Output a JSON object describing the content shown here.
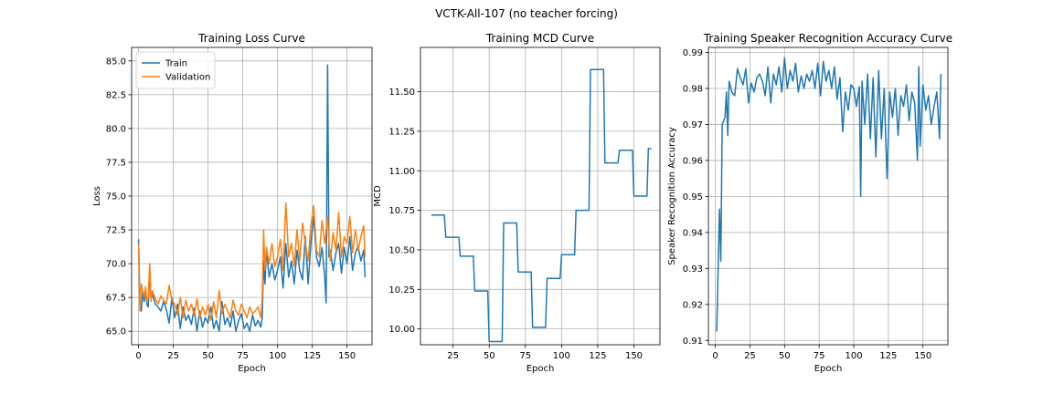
{
  "figure": {
    "suptitle": "VCTK-All-107 (no teacher forcing)"
  },
  "colors": {
    "train": "#1f77b4",
    "validation": "#ff7f0e",
    "grid": "#b0b0b0"
  },
  "chart_data": [
    {
      "type": "line",
      "title": "Training Loss Curve",
      "xlabel": "Epoch",
      "ylabel": "Loss",
      "xlim": [
        -5,
        168
      ],
      "ylim": [
        64.0,
        86.0
      ],
      "xticks": [
        0,
        25,
        50,
        75,
        100,
        125,
        150
      ],
      "yticks": [
        65.0,
        67.5,
        70.0,
        72.5,
        75.0,
        77.5,
        80.0,
        82.5,
        85.0
      ],
      "ytick_labels": [
        "65.0",
        "67.5",
        "70.0",
        "72.5",
        "75.0",
        "77.5",
        "80.0",
        "82.5",
        "85.0"
      ],
      "grid": true,
      "legend": "upper-left",
      "series": [
        {
          "name": "Train",
          "color_key": "train",
          "x": [
            0,
            1,
            2,
            3,
            4,
            5,
            6,
            7,
            8,
            9,
            10,
            12,
            14,
            16,
            18,
            20,
            22,
            24,
            26,
            28,
            30,
            32,
            34,
            36,
            38,
            40,
            42,
            44,
            46,
            48,
            50,
            52,
            54,
            56,
            58,
            60,
            62,
            64,
            66,
            68,
            70,
            72,
            74,
            76,
            78,
            80,
            82,
            84,
            86,
            88,
            89,
            90,
            91,
            92,
            94,
            96,
            98,
            100,
            102,
            104,
            106,
            108,
            110,
            112,
            114,
            116,
            118,
            120,
            122,
            124,
            126,
            128,
            130,
            132,
            134,
            135,
            136,
            137,
            138,
            140,
            142,
            144,
            146,
            148,
            150,
            152,
            154,
            156,
            158,
            160,
            162,
            163
          ],
          "y": [
            71.8,
            67.0,
            66.5,
            68.0,
            67.2,
            68.0,
            67.0,
            66.8,
            69.5,
            67.3,
            67.8,
            67.0,
            66.8,
            66.5,
            67.2,
            66.6,
            65.6,
            67.5,
            66.0,
            67.0,
            65.2,
            66.8,
            65.8,
            66.2,
            65.5,
            66.7,
            65.0,
            66.5,
            65.3,
            66.0,
            65.6,
            66.8,
            65.2,
            65.8,
            65.0,
            67.2,
            65.5,
            66.0,
            65.3,
            66.5,
            65.0,
            65.8,
            66.3,
            65.2,
            65.6,
            65.0,
            66.2,
            65.4,
            65.8,
            65.3,
            66.0,
            70.2,
            68.5,
            71.0,
            69.0,
            70.0,
            68.8,
            69.5,
            70.5,
            68.2,
            71.5,
            69.0,
            70.2,
            68.5,
            71.0,
            69.5,
            68.8,
            72.0,
            68.5,
            71.5,
            73.5,
            70.5,
            69.8,
            71.2,
            69.0,
            67.1,
            84.7,
            70.5,
            71.0,
            69.5,
            70.8,
            71.5,
            69.3,
            71.2,
            70.0,
            72.0,
            69.5,
            70.8,
            71.3,
            70.2,
            71.0,
            69.0
          ]
        },
        {
          "name": "Validation",
          "color_key": "validation",
          "x": [
            0,
            1,
            2,
            3,
            4,
            5,
            6,
            7,
            8,
            9,
            10,
            12,
            14,
            16,
            18,
            20,
            22,
            24,
            26,
            28,
            30,
            32,
            34,
            36,
            38,
            40,
            42,
            44,
            46,
            48,
            50,
            52,
            54,
            56,
            58,
            60,
            62,
            64,
            66,
            68,
            70,
            72,
            74,
            76,
            78,
            80,
            82,
            84,
            86,
            88,
            89,
            90,
            91,
            92,
            94,
            96,
            98,
            100,
            102,
            104,
            106,
            108,
            110,
            112,
            114,
            116,
            118,
            120,
            122,
            124,
            126,
            128,
            130,
            132,
            134,
            136,
            137,
            138,
            140,
            142,
            144,
            146,
            148,
            150,
            152,
            154,
            156,
            158,
            160,
            162,
            163
          ],
          "y": [
            71.5,
            66.5,
            68.5,
            68.0,
            67.5,
            68.3,
            67.2,
            67.5,
            70.0,
            67.2,
            68.0,
            67.4,
            67.0,
            67.6,
            67.3,
            67.0,
            68.4,
            67.3,
            67.0,
            66.2,
            67.5,
            66.0,
            67.3,
            66.5,
            67.0,
            66.2,
            67.4,
            66.0,
            66.8,
            66.2,
            67.0,
            65.8,
            67.2,
            66.0,
            68.0,
            66.3,
            67.0,
            66.5,
            66.0,
            67.3,
            66.5,
            66.2,
            67.0,
            66.5,
            66.0,
            66.8,
            66.3,
            66.5,
            66.8,
            66.0,
            67.5,
            72.5,
            69.5,
            71.2,
            70.0,
            71.5,
            69.8,
            70.5,
            71.8,
            69.5,
            74.5,
            70.5,
            71.5,
            69.8,
            72.5,
            70.2,
            73.0,
            71.5,
            70.2,
            72.8,
            74.3,
            71.0,
            70.5,
            73.2,
            71.5,
            73.5,
            71.5,
            70.2,
            72.3,
            71.0,
            73.8,
            70.5,
            72.0,
            71.5,
            73.5,
            70.8,
            72.5,
            71.0,
            72.0,
            72.8,
            70.5
          ]
        }
      ]
    },
    {
      "type": "line",
      "title": "Training MCD Curve",
      "xlabel": "Epoch",
      "ylabel": "MCD",
      "xlim": [
        2.5,
        168
      ],
      "ylim": [
        9.9,
        11.78
      ],
      "xticks": [
        25,
        50,
        75,
        100,
        125,
        150
      ],
      "yticks": [
        10.0,
        10.25,
        10.5,
        10.75,
        11.0,
        11.25,
        11.5
      ],
      "ytick_labels": [
        "10.00",
        "10.25",
        "10.50",
        "10.75",
        "11.00",
        "11.25",
        "11.50"
      ],
      "grid": true,
      "series": [
        {
          "color_key": "train",
          "x": [
            10,
            19,
            20,
            29,
            30,
            39,
            40,
            49,
            50,
            59,
            60,
            69,
            70,
            79,
            80,
            89,
            90,
            99,
            100,
            109,
            110,
            119,
            120,
            129,
            130,
            139,
            140,
            149,
            150,
            159,
            160,
            162
          ],
          "y": [
            10.72,
            10.72,
            10.58,
            10.58,
            10.46,
            10.46,
            10.24,
            10.24,
            9.92,
            9.92,
            10.67,
            10.67,
            10.36,
            10.36,
            10.01,
            10.01,
            10.32,
            10.32,
            10.47,
            10.47,
            10.75,
            10.75,
            11.64,
            11.64,
            11.05,
            11.05,
            11.13,
            11.13,
            10.84,
            10.84,
            11.14,
            11.14
          ]
        }
      ]
    },
    {
      "type": "line",
      "title": "Training Speaker Recognition Accuracy Curve",
      "xlabel": "Epoch",
      "ylabel": "Speaker Recognition Accuracy",
      "xlim": [
        -5,
        168
      ],
      "ylim": [
        0.9088,
        0.9914
      ],
      "xticks": [
        0,
        25,
        50,
        75,
        100,
        125,
        150
      ],
      "yticks": [
        0.91,
        0.92,
        0.93,
        0.94,
        0.95,
        0.96,
        0.97,
        0.98,
        0.99
      ],
      "ytick_labels": [
        "0.91",
        "0.92",
        "0.93",
        "0.94",
        "0.95",
        "0.96",
        "0.97",
        "0.98",
        "0.99"
      ],
      "grid": true,
      "series": [
        {
          "color_key": "train",
          "x": [
            1,
            3,
            4,
            5,
            7,
            8,
            9,
            10,
            12,
            14,
            16,
            18,
            20,
            22,
            24,
            26,
            28,
            30,
            32,
            34,
            36,
            38,
            40,
            42,
            44,
            46,
            48,
            50,
            52,
            54,
            56,
            58,
            60,
            62,
            64,
            66,
            68,
            70,
            72,
            74,
            76,
            78,
            80,
            82,
            84,
            86,
            88,
            90,
            92,
            94,
            96,
            98,
            100,
            102,
            104,
            105,
            106,
            108,
            110,
            112,
            114,
            116,
            118,
            120,
            122,
            124,
            126,
            128,
            130,
            132,
            134,
            136,
            138,
            140,
            142,
            144,
            146,
            147,
            148,
            150,
            152,
            154,
            156,
            158,
            160,
            162,
            163
          ],
          "y": [
            0.9125,
            0.9465,
            0.932,
            0.97,
            0.972,
            0.979,
            0.967,
            0.982,
            0.979,
            0.978,
            0.9855,
            0.983,
            0.981,
            0.9855,
            0.976,
            0.9815,
            0.979,
            0.983,
            0.984,
            0.982,
            0.978,
            0.986,
            0.976,
            0.984,
            0.981,
            0.986,
            0.979,
            0.9885,
            0.98,
            0.985,
            0.982,
            0.987,
            0.979,
            0.9835,
            0.98,
            0.984,
            0.982,
            0.985,
            0.98,
            0.987,
            0.978,
            0.9875,
            0.982,
            0.985,
            0.98,
            0.986,
            0.977,
            0.983,
            0.968,
            0.979,
            0.974,
            0.981,
            0.98,
            0.975,
            0.9805,
            0.95,
            0.982,
            0.97,
            0.984,
            0.966,
            0.983,
            0.961,
            0.985,
            0.966,
            0.98,
            0.955,
            0.979,
            0.972,
            0.98,
            0.967,
            0.978,
            0.975,
            0.981,
            0.971,
            0.979,
            0.976,
            0.96,
            0.986,
            0.964,
            0.981,
            0.974,
            0.978,
            0.97,
            0.975,
            0.979,
            0.966,
            0.984
          ]
        }
      ]
    }
  ]
}
